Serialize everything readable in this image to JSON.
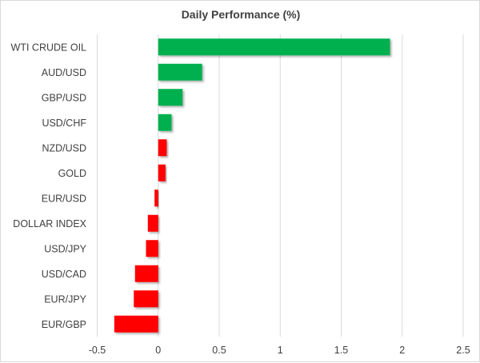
{
  "chart_data": {
    "type": "bar",
    "orientation": "horizontal",
    "title": "Daily Performance (%)",
    "categories": [
      "WTI CRUDE OIL",
      "AUD/USD",
      "GBP/USD",
      "USD/CHF",
      "NZD/USD",
      "GOLD",
      "EUR/USD",
      "DOLLAR INDEX",
      "USD/JPY",
      "USD/CAD",
      "EUR/JPY",
      "EUR/GBP"
    ],
    "values": [
      1.9,
      0.36,
      0.2,
      0.11,
      0.07,
      0.06,
      -0.03,
      -0.085,
      -0.1,
      -0.19,
      -0.2,
      -0.36
    ],
    "bar_colors": [
      "#00b050",
      "#00b050",
      "#00b050",
      "#00b050",
      "#ff0000",
      "#ff0000",
      "#ff0000",
      "#ff0000",
      "#ff0000",
      "#ff0000",
      "#ff0000",
      "#ff0000"
    ],
    "xlim": [
      -0.5,
      2.5
    ],
    "xticks": [
      "-0.5",
      "0",
      "0.5",
      "1",
      "1.5",
      "2",
      "2.5"
    ],
    "grid": true,
    "legend": "none"
  }
}
